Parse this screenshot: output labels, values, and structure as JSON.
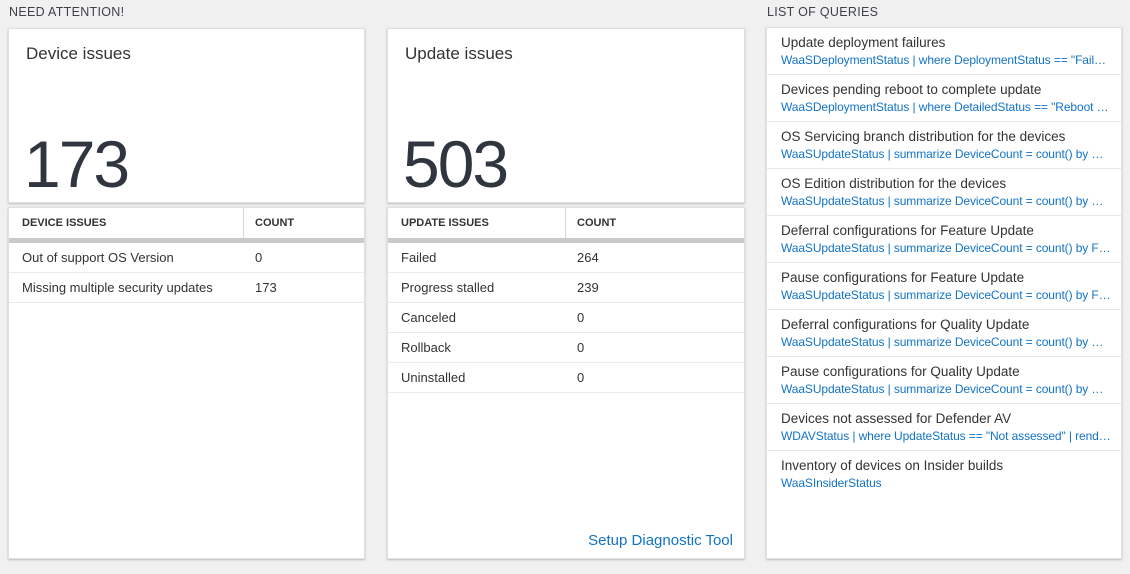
{
  "colors": {
    "accent_blue": "#1273c6",
    "count_text": "#2f3640"
  },
  "headers": {
    "need_attention": "NEED ATTENTION!",
    "list_of_queries": "LIST OF QUERIES"
  },
  "device_card": {
    "title": "Device issues",
    "count": "173",
    "table": {
      "col1": "DEVICE ISSUES",
      "col2": "COUNT",
      "rows": [
        {
          "label": "Out of support OS Version",
          "count": "0"
        },
        {
          "label": "Missing multiple security updates",
          "count": "173"
        }
      ]
    }
  },
  "update_card": {
    "title": "Update issues",
    "count": "503",
    "table": {
      "col1": "UPDATE ISSUES",
      "col2": "COUNT",
      "rows": [
        {
          "label": "Failed",
          "count": "264"
        },
        {
          "label": "Progress stalled",
          "count": "239"
        },
        {
          "label": "Canceled",
          "count": "0"
        },
        {
          "label": "Rollback",
          "count": "0"
        },
        {
          "label": "Uninstalled",
          "count": "0"
        }
      ]
    },
    "link": "Setup Diagnostic Tool"
  },
  "queries": {
    "items": [
      {
        "title": "Update deployment failures",
        "query": "WaaSDeploymentStatus | where DeploymentStatus == \"Failed\" |..."
      },
      {
        "title": "Devices pending reboot to complete update",
        "query": "WaaSDeploymentStatus | where DetailedStatus == \"Reboot pend..."
      },
      {
        "title": "OS Servicing branch distribution for the devices",
        "query": "WaaSUpdateStatus | summarize DeviceCount = count() by OSSer..."
      },
      {
        "title": "OS Edition distribution for the devices",
        "query": "WaaSUpdateStatus | summarize DeviceCount = count() by OSEdit..."
      },
      {
        "title": "Deferral configurations for Feature Update",
        "query": "WaaSUpdateStatus | summarize DeviceCount = count() by Featur..."
      },
      {
        "title": "Pause configurations for Feature Update",
        "query": "WaaSUpdateStatus | summarize DeviceCount = count() by Featur..."
      },
      {
        "title": "Deferral configurations for Quality Update",
        "query": "WaaSUpdateStatus | summarize DeviceCount = count() by Qualit..."
      },
      {
        "title": "Pause configurations for Quality Update",
        "query": "WaaSUpdateStatus | summarize DeviceCount = count() by Qualit..."
      },
      {
        "title": "Devices not assessed for Defender AV",
        "query": "WDAVStatus | where UpdateStatus == \"Not assessed\" | render ta..."
      },
      {
        "title": "Inventory of devices on Insider builds",
        "query": "WaaSInsiderStatus"
      }
    ]
  }
}
